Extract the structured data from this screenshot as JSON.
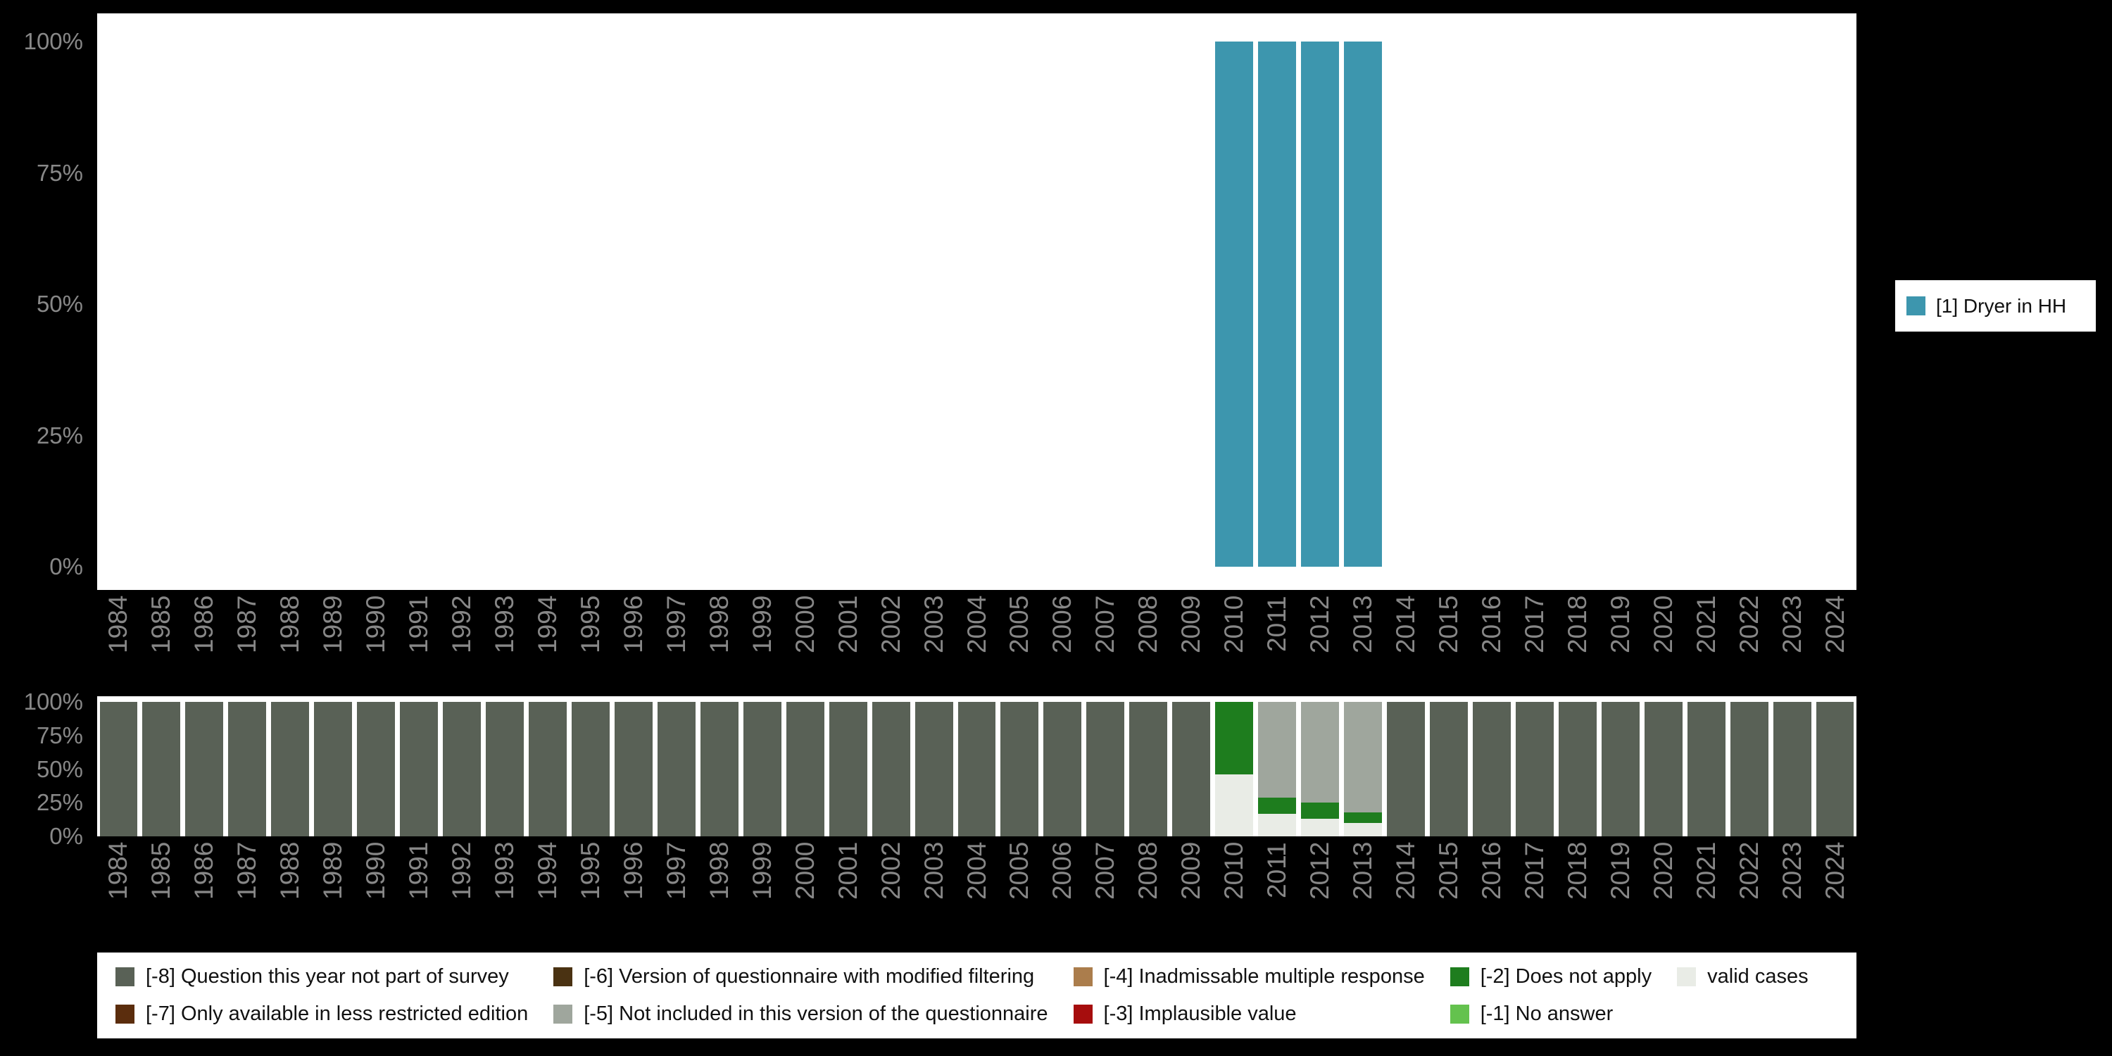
{
  "colors": {
    "background": "#000000",
    "plot_background": "#ffffff",
    "axis_text": "#888888"
  },
  "legend_right": {
    "label": "[1] Dryer in HH",
    "color": "#3d96ae"
  },
  "missing_legend": {
    "items": [
      {
        "label": "[-8] Question this year not part of survey",
        "color": "#596156"
      },
      {
        "label": "[-7] Only available in less restricted edition",
        "color": "#5b2d0d"
      },
      {
        "label": "[-6] Version of questionnaire with modified filtering",
        "color": "#4a3212"
      },
      {
        "label": "[-5] Not included in this version of the questionnaire",
        "color": "#9fa69d"
      },
      {
        "label": "[-4] Inadmissable multiple response",
        "color": "#ab7d4c"
      },
      {
        "label": "[-3] Implausible value",
        "color": "#a60d0d"
      },
      {
        "label": "[-2] Does not apply",
        "color": "#1e7d1e"
      },
      {
        "label": "[-1] No answer",
        "color": "#64c24e"
      },
      {
        "label": "valid cases",
        "color": "#e9ece6"
      }
    ]
  },
  "chart_data": [
    {
      "type": "bar",
      "stacked": true,
      "title": "",
      "xlabel": "",
      "ylabel": "",
      "ylim": [
        0,
        100
      ],
      "yticks": [
        "100%",
        "75%",
        "50%",
        "25%",
        "0%"
      ],
      "legend_position": "right",
      "x": [
        1984,
        1985,
        1986,
        1987,
        1988,
        1989,
        1990,
        1991,
        1992,
        1993,
        1994,
        1995,
        1996,
        1997,
        1998,
        1999,
        2000,
        2001,
        2002,
        2003,
        2004,
        2005,
        2006,
        2007,
        2008,
        2009,
        2010,
        2011,
        2012,
        2013,
        2014,
        2015,
        2016,
        2017,
        2018,
        2019,
        2020,
        2021,
        2022,
        2023,
        2024
      ],
      "series": [
        {
          "name": "[1] Dryer in HH",
          "color": "#3d96ae",
          "values": [
            0,
            0,
            0,
            0,
            0,
            0,
            0,
            0,
            0,
            0,
            0,
            0,
            0,
            0,
            0,
            0,
            0,
            0,
            0,
            0,
            0,
            0,
            0,
            0,
            0,
            0,
            100,
            100,
            100,
            100,
            0,
            0,
            0,
            0,
            0,
            0,
            0,
            0,
            0,
            0,
            0
          ]
        }
      ]
    },
    {
      "type": "bar",
      "stacked": true,
      "title": "",
      "xlabel": "",
      "ylabel": "",
      "ylim": [
        0,
        100
      ],
      "yticks": [
        "100%",
        "75%",
        "50%",
        "25%",
        "0%"
      ],
      "legend_position": "bottom",
      "x": [
        1984,
        1985,
        1986,
        1987,
        1988,
        1989,
        1990,
        1991,
        1992,
        1993,
        1994,
        1995,
        1996,
        1997,
        1998,
        1999,
        2000,
        2001,
        2002,
        2003,
        2004,
        2005,
        2006,
        2007,
        2008,
        2009,
        2010,
        2011,
        2012,
        2013,
        2014,
        2015,
        2016,
        2017,
        2018,
        2019,
        2020,
        2021,
        2022,
        2023,
        2024
      ],
      "series": [
        {
          "name": "valid cases",
          "color": "#e9ece6",
          "values": [
            0,
            0,
            0,
            0,
            0,
            0,
            0,
            0,
            0,
            0,
            0,
            0,
            0,
            0,
            0,
            0,
            0,
            0,
            0,
            0,
            0,
            0,
            0,
            0,
            0,
            0,
            46,
            17,
            13,
            10,
            0,
            0,
            0,
            0,
            0,
            0,
            0,
            0,
            0,
            0,
            0
          ]
        },
        {
          "name": "[-2] Does not apply",
          "color": "#1e7d1e",
          "values": [
            0,
            0,
            0,
            0,
            0,
            0,
            0,
            0,
            0,
            0,
            0,
            0,
            0,
            0,
            0,
            0,
            0,
            0,
            0,
            0,
            0,
            0,
            0,
            0,
            0,
            0,
            54,
            12,
            12,
            8,
            0,
            0,
            0,
            0,
            0,
            0,
            0,
            0,
            0,
            0,
            0
          ]
        },
        {
          "name": "[-5] Not included in this version of the questionnaire",
          "color": "#9fa69d",
          "values": [
            0,
            0,
            0,
            0,
            0,
            0,
            0,
            0,
            0,
            0,
            0,
            0,
            0,
            0,
            0,
            0,
            0,
            0,
            0,
            0,
            0,
            0,
            0,
            0,
            0,
            0,
            0,
            71,
            75,
            82,
            0,
            0,
            0,
            0,
            0,
            0,
            0,
            0,
            0,
            0,
            0
          ]
        },
        {
          "name": "[-8] Question this year not part of survey",
          "color": "#596156",
          "values": [
            100,
            100,
            100,
            100,
            100,
            100,
            100,
            100,
            100,
            100,
            100,
            100,
            100,
            100,
            100,
            100,
            100,
            100,
            100,
            100,
            100,
            100,
            100,
            100,
            100,
            100,
            0,
            0,
            0,
            0,
            100,
            100,
            100,
            100,
            100,
            100,
            100,
            100,
            100,
            100,
            100
          ]
        }
      ]
    }
  ]
}
